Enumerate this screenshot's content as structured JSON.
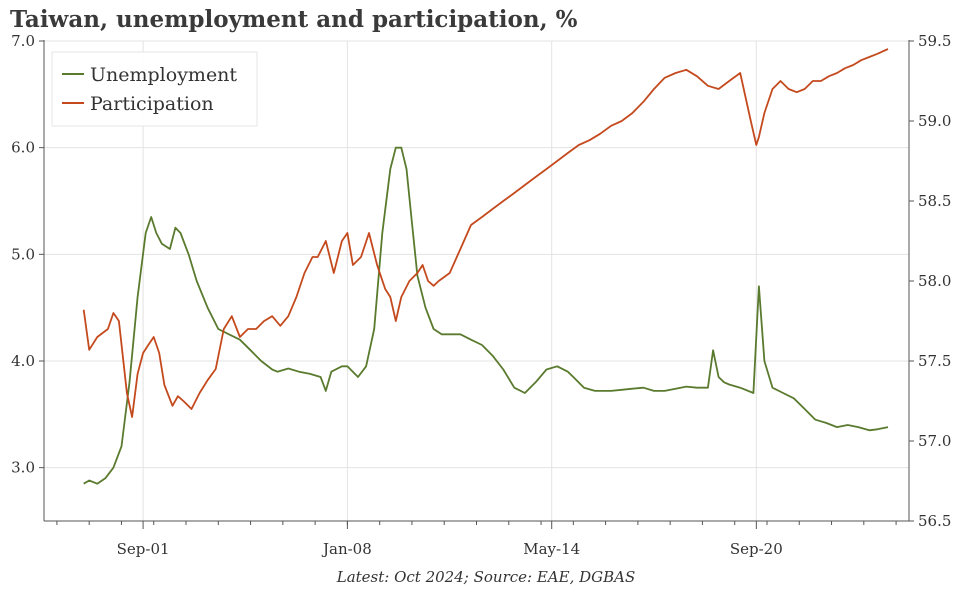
{
  "title": "Taiwan, unemployment and participation, %",
  "footer": "Latest: Oct 2024; Source: EAE, DGBAS",
  "chart_data": {
    "type": "line",
    "title": "Taiwan, unemployment and participation, %",
    "x_ticks": [
      "Sep-01",
      "Jan-08",
      "May-14",
      "Sep-20"
    ],
    "x_tick_times": [
      2001.67,
      2008.0,
      2014.33,
      2020.67
    ],
    "x_range": [
      1998.6,
      2025.4
    ],
    "y_left": {
      "range": [
        2.5,
        7.0
      ],
      "ticks": [
        "3.0",
        "4.0",
        "5.0",
        "6.0",
        "7.0"
      ]
    },
    "y_right": {
      "range": [
        56.5,
        59.5
      ],
      "ticks": [
        "56.5",
        "57.0",
        "57.5",
        "58.0",
        "58.5",
        "59.0",
        "59.5"
      ]
    },
    "grid": true,
    "legend_position": "top-left",
    "series": [
      {
        "name": "Unemployment",
        "axis": "left",
        "color": "#5a7a2e",
        "x": [
          1999.83,
          2000.0,
          2000.25,
          2000.5,
          2000.75,
          2001.0,
          2001.25,
          2001.5,
          2001.75,
          2001.92,
          2002.08,
          2002.25,
          2002.5,
          2002.67,
          2002.83,
          2003.08,
          2003.33,
          2003.67,
          2004.0,
          2004.33,
          2004.67,
          2005.0,
          2005.33,
          2005.67,
          2005.83,
          2006.17,
          2006.5,
          2006.83,
          2007.17,
          2007.33,
          2007.5,
          2007.83,
          2008.0,
          2008.33,
          2008.58,
          2008.83,
          2009.08,
          2009.33,
          2009.5,
          2009.67,
          2009.83,
          2010.0,
          2010.17,
          2010.42,
          2010.67,
          2010.92,
          2011.17,
          2011.5,
          2011.83,
          2012.17,
          2012.5,
          2012.83,
          2013.17,
          2013.5,
          2013.83,
          2014.17,
          2014.5,
          2014.83,
          2015.0,
          2015.33,
          2015.67,
          2015.83,
          2016.17,
          2016.5,
          2016.83,
          2017.17,
          2017.5,
          2017.83,
          2018.17,
          2018.5,
          2018.83,
          2019.17,
          2019.33,
          2019.5,
          2019.67,
          2019.83,
          2020.17,
          2020.58,
          2020.75,
          2020.92,
          2021.17,
          2021.5,
          2021.83,
          2022.17,
          2022.5,
          2022.83,
          2023.17,
          2023.5,
          2023.83,
          2024.17,
          2024.42,
          2024.75
        ],
        "values": [
          2.85,
          2.88,
          2.85,
          2.9,
          3.0,
          3.2,
          3.8,
          4.6,
          5.2,
          5.35,
          5.2,
          5.1,
          5.05,
          5.25,
          5.2,
          5.0,
          4.75,
          4.5,
          4.3,
          4.25,
          4.2,
          4.1,
          4.0,
          3.92,
          3.9,
          3.93,
          3.9,
          3.88,
          3.85,
          3.72,
          3.9,
          3.95,
          3.95,
          3.85,
          3.95,
          4.3,
          5.2,
          5.8,
          6.0,
          6.0,
          5.8,
          5.3,
          4.8,
          4.5,
          4.3,
          4.25,
          4.25,
          4.25,
          4.2,
          4.15,
          4.05,
          3.92,
          3.75,
          3.7,
          3.8,
          3.92,
          3.95,
          3.9,
          3.85,
          3.75,
          3.72,
          3.72,
          3.72,
          3.73,
          3.74,
          3.75,
          3.72,
          3.72,
          3.74,
          3.76,
          3.75,
          3.75,
          4.1,
          3.85,
          3.8,
          3.78,
          3.75,
          3.7,
          4.7,
          4.0,
          3.75,
          3.7,
          3.65,
          3.55,
          3.45,
          3.42,
          3.38,
          3.4,
          3.38,
          3.35,
          3.36,
          3.38
        ]
      },
      {
        "name": "Participation",
        "axis": "right",
        "color": "#c44a1e",
        "x": [
          1999.83,
          2000.0,
          2000.25,
          2000.58,
          2000.75,
          2000.92,
          2001.17,
          2001.33,
          2001.5,
          2001.67,
          2001.83,
          2002.0,
          2002.17,
          2002.33,
          2002.58,
          2002.75,
          2002.92,
          2003.17,
          2003.42,
          2003.67,
          2003.92,
          2004.17,
          2004.42,
          2004.67,
          2004.92,
          2005.17,
          2005.42,
          2005.67,
          2005.92,
          2006.17,
          2006.42,
          2006.67,
          2006.92,
          2007.08,
          2007.33,
          2007.58,
          2007.83,
          2008.0,
          2008.17,
          2008.42,
          2008.67,
          2008.92,
          2009.17,
          2009.33,
          2009.5,
          2009.67,
          2009.92,
          2010.17,
          2010.33,
          2010.5,
          2010.67,
          2010.83,
          2011.17,
          2011.5,
          2011.83,
          2012.17,
          2012.5,
          2012.83,
          2013.17,
          2013.5,
          2013.83,
          2014.17,
          2014.5,
          2014.83,
          2015.17,
          2015.5,
          2015.83,
          2016.17,
          2016.5,
          2016.83,
          2017.17,
          2017.5,
          2017.83,
          2018.17,
          2018.5,
          2018.83,
          2019.17,
          2019.5,
          2019.83,
          2020.17,
          2020.5,
          2020.67,
          2020.75,
          2020.92,
          2021.17,
          2021.42,
          2021.67,
          2021.92,
          2022.17,
          2022.42,
          2022.67,
          2022.92,
          2023.17,
          2023.42,
          2023.67,
          2023.92,
          2024.17,
          2024.42,
          2024.75
        ],
        "values": [
          57.82,
          57.57,
          57.65,
          57.7,
          57.8,
          57.75,
          57.3,
          57.15,
          57.42,
          57.55,
          57.6,
          57.65,
          57.55,
          57.35,
          57.22,
          57.28,
          57.25,
          57.2,
          57.3,
          57.38,
          57.45,
          57.7,
          57.78,
          57.65,
          57.7,
          57.7,
          57.75,
          57.78,
          57.72,
          57.78,
          57.9,
          58.05,
          58.15,
          58.15,
          58.25,
          58.05,
          58.25,
          58.3,
          58.1,
          58.15,
          58.3,
          58.1,
          57.95,
          57.9,
          57.75,
          57.9,
          58.0,
          58.05,
          58.1,
          58.0,
          57.97,
          58.0,
          58.05,
          58.2,
          58.35,
          58.4,
          58.45,
          58.5,
          58.55,
          58.6,
          58.65,
          58.7,
          58.75,
          58.8,
          58.85,
          58.88,
          58.92,
          58.97,
          59.0,
          59.05,
          59.12,
          59.2,
          59.27,
          59.3,
          59.32,
          59.28,
          59.22,
          59.2,
          59.25,
          59.3,
          59.0,
          58.85,
          58.9,
          59.05,
          59.2,
          59.25,
          59.2,
          59.18,
          59.2,
          59.25,
          59.25,
          59.28,
          59.3,
          59.33,
          59.35,
          59.38,
          59.4,
          59.42,
          59.45
        ]
      }
    ]
  }
}
